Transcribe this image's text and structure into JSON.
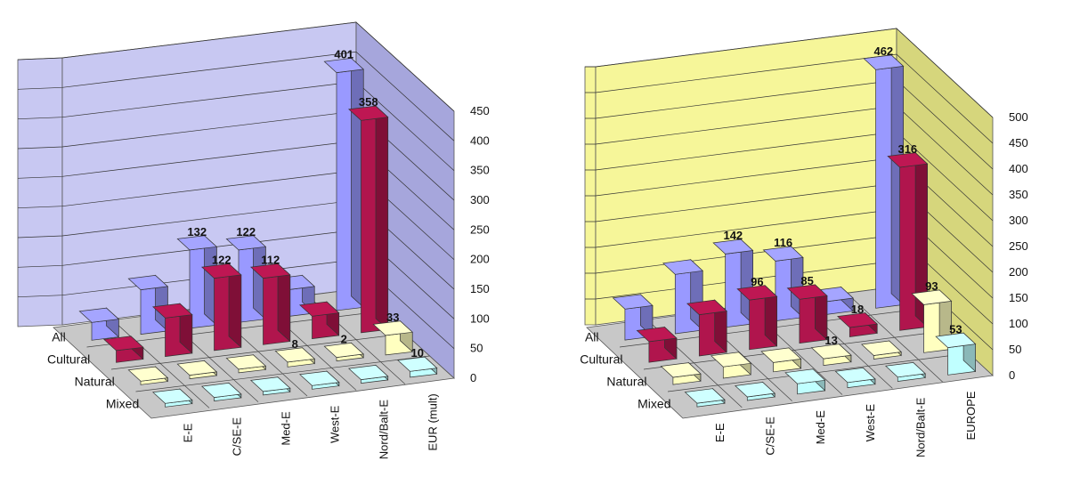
{
  "colors": {
    "All": "#9999ff",
    "Cultural": "#b0154d",
    "Natural": "#ffffc0",
    "Mixed": "#c0ffff"
  },
  "chart_data": [
    {
      "type": "bar",
      "title": "",
      "xlabel": "",
      "ylabel": "",
      "ylim": [
        0,
        450
      ],
      "yticks": [
        0,
        50,
        100,
        150,
        200,
        250,
        300,
        350,
        400,
        450
      ],
      "wall_color": "#c8c8f2",
      "side_wall_color": "#a6a6dc",
      "categories": [
        "E-E",
        "C/SE-E",
        "Med-E",
        "West-E",
        "Nord/Balt-E",
        "EUR (mult)"
      ],
      "series": [
        {
          "name": "All",
          "values": [
            30,
            75,
            132,
            122,
            45,
            401
          ],
          "labels": [
            null,
            null,
            "132",
            "122",
            null,
            "401"
          ]
        },
        {
          "name": "Cultural",
          "values": [
            20,
            65,
            122,
            112,
            38,
            358
          ],
          "labels": [
            null,
            null,
            "122",
            "112",
            null,
            "358"
          ]
        },
        {
          "name": "Natural",
          "values": [
            4,
            5,
            3,
            8,
            2,
            33
          ],
          "labels": [
            null,
            null,
            null,
            "8",
            "2",
            "33"
          ]
        },
        {
          "name": "Mixed",
          "values": [
            2,
            2,
            2,
            2,
            2,
            10
          ],
          "labels": [
            null,
            null,
            null,
            null,
            null,
            "10"
          ]
        }
      ]
    },
    {
      "type": "bar",
      "title": "",
      "xlabel": "",
      "ylabel": "",
      "ylim": [
        0,
        500
      ],
      "yticks": [
        0,
        50,
        100,
        150,
        200,
        250,
        300,
        350,
        400,
        450,
        500
      ],
      "wall_color": "#f6f699",
      "side_wall_color": "#d6d67c",
      "categories": [
        "E-E",
        "C/SE-E",
        "Med-E",
        "West-E",
        "Nord/Balt-E",
        "EUROPE"
      ],
      "series": [
        {
          "name": "All",
          "values": [
            60,
            115,
            142,
            116,
            25,
            462
          ],
          "labels": [
            null,
            null,
            "142",
            "116",
            null,
            "462"
          ]
        },
        {
          "name": "Cultural",
          "values": [
            40,
            80,
            96,
            85,
            18,
            316
          ],
          "labels": [
            null,
            null,
            "96",
            "85",
            "18",
            "316"
          ]
        },
        {
          "name": "Natural",
          "values": [
            14,
            22,
            18,
            13,
            6,
            93
          ],
          "labels": [
            null,
            null,
            null,
            "13",
            null,
            "93"
          ]
        },
        {
          "name": "Mixed",
          "values": [
            4,
            6,
            20,
            10,
            8,
            53
          ],
          "labels": [
            null,
            null,
            null,
            null,
            null,
            "53"
          ]
        }
      ]
    }
  ]
}
